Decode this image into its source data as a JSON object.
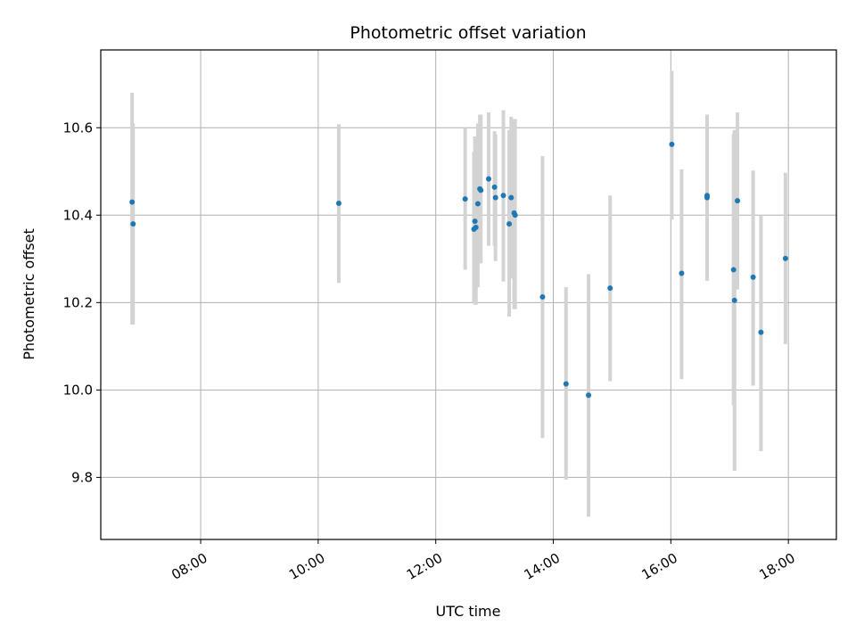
{
  "chart_data": {
    "type": "scatter",
    "title": "Photometric offset variation",
    "xlabel": "UTC time",
    "ylabel": "Photometric offset",
    "grid": true,
    "marker_color": "#1f77b4",
    "errorbar_color": "#d3d3d3",
    "x_ticks": [
      "08:00",
      "10:00",
      "12:00",
      "14:00",
      "16:00",
      "18:00"
    ],
    "y_ticks": [
      "9.8",
      "10.0",
      "10.2",
      "10.4",
      "10.6"
    ],
    "xlim": [
      "06:18",
      "18:49"
    ],
    "ylim": [
      9.658,
      10.778
    ],
    "points": [
      {
        "x": "06:50",
        "y": 10.43,
        "yerr_low": 10.15,
        "yerr_high": 10.68
      },
      {
        "x": "06:51",
        "y": 10.38,
        "yerr_low": 10.15,
        "yerr_high": 10.61
      },
      {
        "x": "10:21",
        "y": 10.427,
        "yerr_low": 10.245,
        "yerr_high": 10.608
      },
      {
        "x": "12:30",
        "y": 10.437,
        "yerr_low": 10.275,
        "yerr_high": 10.6
      },
      {
        "x": "12:39",
        "y": 10.368,
        "yerr_low": 10.2,
        "yerr_high": 10.545
      },
      {
        "x": "12:40",
        "y": 10.386,
        "yerr_low": 10.195,
        "yerr_high": 10.58
      },
      {
        "x": "12:41",
        "y": 10.372,
        "yerr_low": 10.195,
        "yerr_high": 10.58
      },
      {
        "x": "12:43",
        "y": 10.426,
        "yerr_low": 10.235,
        "yerr_high": 10.61
      },
      {
        "x": "12:45",
        "y": 10.46,
        "yerr_low": 10.29,
        "yerr_high": 10.63
      },
      {
        "x": "12:46",
        "y": 10.457,
        "yerr_low": 10.29,
        "yerr_high": 10.63
      },
      {
        "x": "12:54",
        "y": 10.483,
        "yerr_low": 10.33,
        "yerr_high": 10.635
      },
      {
        "x": "13:00",
        "y": 10.464,
        "yerr_low": 10.33,
        "yerr_high": 10.592
      },
      {
        "x": "13:01",
        "y": 10.44,
        "yerr_low": 10.295,
        "yerr_high": 10.585
      },
      {
        "x": "13:09",
        "y": 10.445,
        "yerr_low": 10.248,
        "yerr_high": 10.64
      },
      {
        "x": "13:15",
        "y": 10.38,
        "yerr_low": 10.168,
        "yerr_high": 10.595
      },
      {
        "x": "13:17",
        "y": 10.44,
        "yerr_low": 10.255,
        "yerr_high": 10.625
      },
      {
        "x": "13:20",
        "y": 10.405,
        "yerr_low": 10.185,
        "yerr_high": 10.62
      },
      {
        "x": "13:21",
        "y": 10.4,
        "yerr_low": 10.185,
        "yerr_high": 10.62
      },
      {
        "x": "13:49",
        "y": 10.213,
        "yerr_low": 9.89,
        "yerr_high": 10.535
      },
      {
        "x": "14:13",
        "y": 10.014,
        "yerr_low": 9.795,
        "yerr_high": 10.235
      },
      {
        "x": "14:36",
        "y": 9.988,
        "yerr_low": 9.71,
        "yerr_high": 10.265
      },
      {
        "x": "14:58",
        "y": 10.233,
        "yerr_low": 10.02,
        "yerr_high": 10.445
      },
      {
        "x": "16:01",
        "y": 10.562,
        "yerr_low": 10.39,
        "yerr_high": 10.73
      },
      {
        "x": "16:11",
        "y": 10.267,
        "yerr_low": 10.025,
        "yerr_high": 10.505
      },
      {
        "x": "16:37",
        "y": 10.445,
        "yerr_low": 10.25,
        "yerr_high": 10.63
      },
      {
        "x": "16:37",
        "y": 10.44,
        "yerr_low": 10.25,
        "yerr_high": 10.63
      },
      {
        "x": "17:04",
        "y": 10.275,
        "yerr_low": 9.965,
        "yerr_high": 10.585
      },
      {
        "x": "17:05",
        "y": 10.205,
        "yerr_low": 9.815,
        "yerr_high": 10.595
      },
      {
        "x": "17:08",
        "y": 10.433,
        "yerr_low": 10.23,
        "yerr_high": 10.635
      },
      {
        "x": "17:24",
        "y": 10.258,
        "yerr_low": 10.01,
        "yerr_high": 10.502
      },
      {
        "x": "17:32",
        "y": 10.132,
        "yerr_low": 9.86,
        "yerr_high": 10.4
      },
      {
        "x": "17:57",
        "y": 10.301,
        "yerr_low": 10.105,
        "yerr_high": 10.497
      }
    ]
  }
}
